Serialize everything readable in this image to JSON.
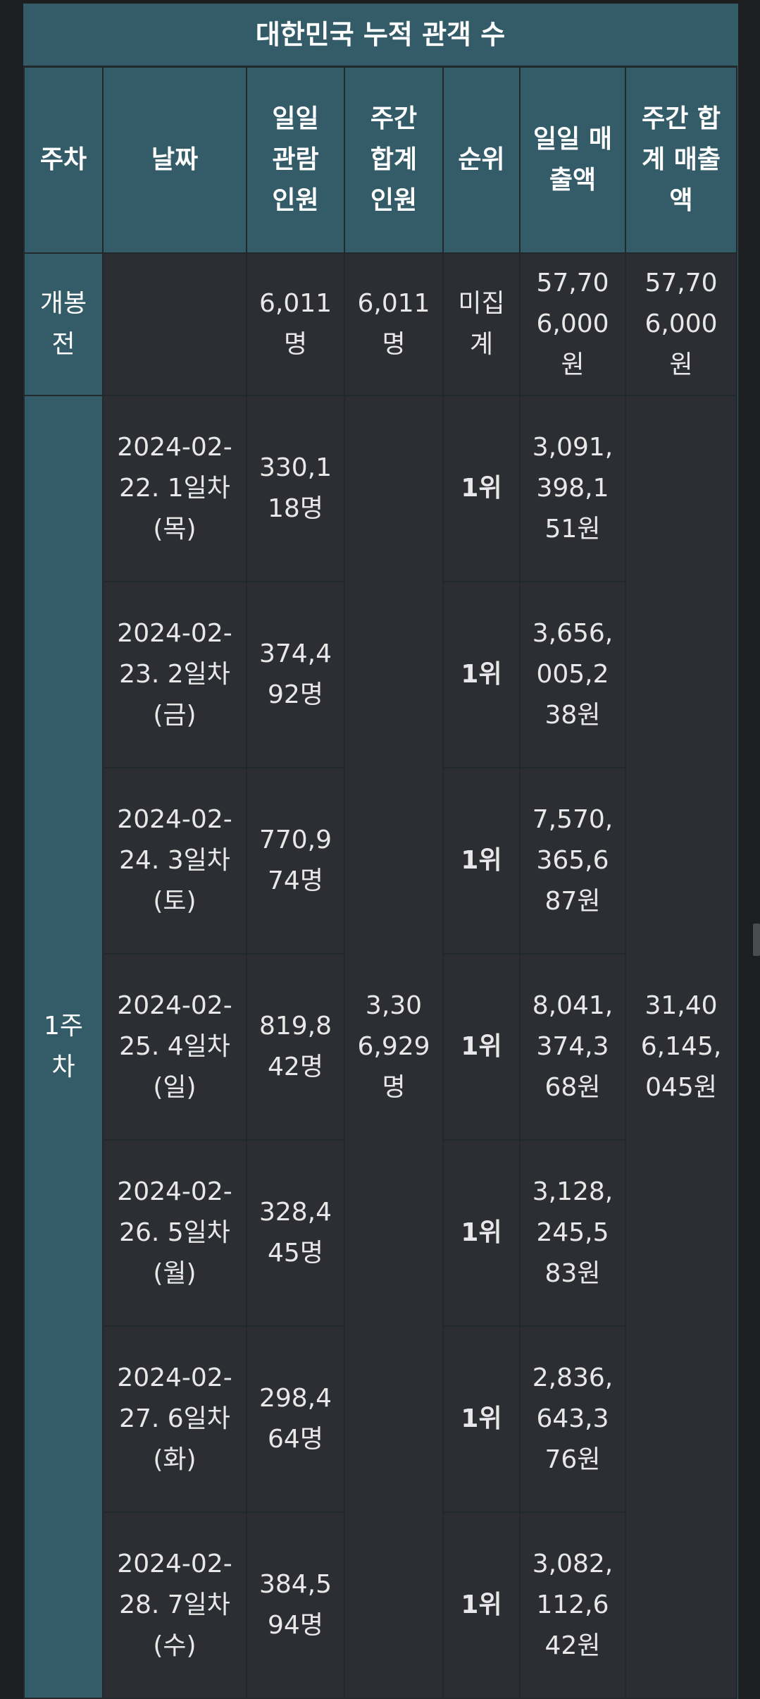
{
  "title": "대한민국 누적 관객 수",
  "headers": [
    "주차",
    "날짜",
    "일일 관람 인원",
    "주간 합계 인원",
    "순위",
    "일일 매출액",
    "주간 합계 매출액"
  ],
  "pre_release": {
    "week": "개봉전",
    "date": "",
    "daily_audience": "6,011명",
    "weekly_audience": "6,011명",
    "rank": "미집계",
    "daily_revenue": "57,706,000원",
    "weekly_revenue": "57,706,000원"
  },
  "week1": {
    "week": "1주차",
    "weekly_audience": "3,306,929명",
    "weekly_revenue": "31,406,145,045원",
    "days": [
      {
        "date": "2024-02-22. 1일차(목)",
        "audience": "330,118명",
        "rank": "1위",
        "revenue": "3,091,398,151원"
      },
      {
        "date": "2024-02-23. 2일차(금)",
        "audience": "374,492명",
        "rank": "1위",
        "revenue": "3,656,005,238원"
      },
      {
        "date": "2024-02-24. 3일차(토)",
        "audience": "770,974명",
        "rank": "1위",
        "revenue": "7,570,365,687원"
      },
      {
        "date": "2024-02-25. 4일차(일)",
        "audience": "819,842명",
        "rank": "1위",
        "revenue": "8,041,374,368원"
      },
      {
        "date": "2024-02-26. 5일차(월)",
        "audience": "328,445명",
        "rank": "1위",
        "revenue": "3,128,245,583원"
      },
      {
        "date": "2024-02-27. 6일차(화)",
        "audience": "298,464명",
        "rank": "1위",
        "revenue": "2,836,643,376원"
      },
      {
        "date": "2024-02-28. 7일차(수)",
        "audience": "384,594명",
        "rank": "1위",
        "revenue": "3,082,112,642원"
      }
    ]
  }
}
